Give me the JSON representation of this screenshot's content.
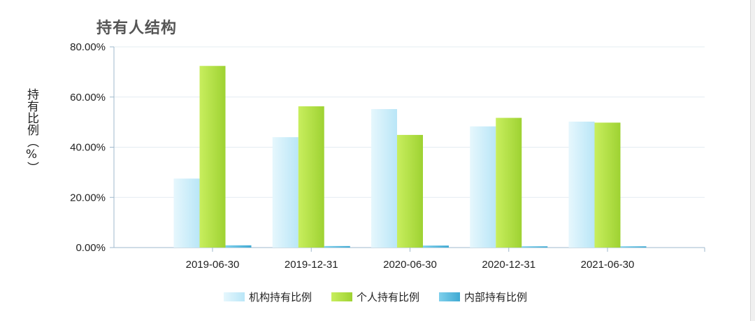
{
  "chart_data": {
    "type": "bar",
    "title": "持有人结构",
    "ylabel": "持有比例（%）",
    "xlabel": "",
    "categories": [
      "2019-06-30",
      "2019-12-31",
      "2020-06-30",
      "2020-12-31",
      "2021-06-30"
    ],
    "series": [
      {
        "name": "机构持有比例",
        "color": "#c8ecfa",
        "values": [
          27.5,
          44.0,
          55.2,
          48.3,
          50.2
        ]
      },
      {
        "name": "个人持有比例",
        "color": "#b4e04a",
        "values": [
          72.4,
          56.3,
          44.9,
          51.7,
          49.8
        ]
      },
      {
        "name": "内部持有比例",
        "color": "#5fc0e0",
        "values": [
          0.9,
          0.6,
          0.8,
          0.5,
          0.5
        ]
      }
    ],
    "ylim": [
      0,
      80
    ],
    "yticks": [
      "0.00%",
      "20.00%",
      "40.00%",
      "60.00%",
      "80.00%"
    ],
    "ytick_values": [
      0,
      20,
      40,
      60,
      80
    ],
    "grid": true,
    "legend_position": "bottom-center"
  }
}
